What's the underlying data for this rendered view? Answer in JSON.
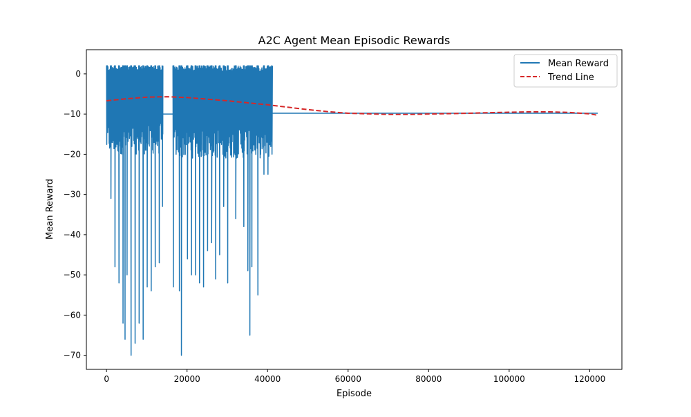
{
  "chart_data": {
    "type": "line",
    "title": "A2C Agent Mean Episodic Rewards",
    "xlabel": "Episode",
    "ylabel": "Mean Reward",
    "xlim": [
      -5000,
      128000
    ],
    "ylim": [
      -73.5,
      6
    ],
    "xticks": [
      0,
      20000,
      40000,
      60000,
      80000,
      100000,
      120000
    ],
    "yticks": [
      0,
      -10,
      -20,
      -30,
      -40,
      -50,
      -60,
      -70
    ],
    "grid": false,
    "legend": "top-right",
    "colors": {
      "mean_reward": "#1f77b4",
      "trend": "#d62728"
    },
    "series": [
      {
        "name": "Mean Reward",
        "style": "solid",
        "segments": [
          {
            "x_range": [
              0,
              14000
            ],
            "band": [
              -20,
              2
            ],
            "description_points": [
              [
                0,
                0
              ],
              [
                1000,
                -31
              ],
              [
                2000,
                -48
              ],
              [
                3000,
                -52
              ],
              [
                4000,
                -62
              ],
              [
                4500,
                -66
              ],
              [
                5000,
                -50
              ],
              [
                6000,
                -70
              ],
              [
                7000,
                -67
              ],
              [
                8000,
                -62
              ],
              [
                9000,
                -66
              ],
              [
                10000,
                -53
              ],
              [
                11000,
                -54
              ],
              [
                12000,
                -48
              ],
              [
                13000,
                -47
              ],
              [
                13800,
                -33
              ]
            ]
          },
          {
            "x_range": [
              14000,
              16500
            ],
            "band": [
              -10,
              -10
            ]
          },
          {
            "x_range": [
              16500,
              41000
            ],
            "band": [
              -21,
              2
            ],
            "description_points": [
              [
                16500,
                -53
              ],
              [
                18000,
                -54
              ],
              [
                18500,
                -70
              ],
              [
                20000,
                -46
              ],
              [
                21000,
                -50
              ],
              [
                22000,
                -50
              ],
              [
                23000,
                -52
              ],
              [
                24000,
                -53
              ],
              [
                25000,
                -44
              ],
              [
                26000,
                -42
              ],
              [
                27000,
                -51
              ],
              [
                28000,
                -45
              ],
              [
                29000,
                -33
              ],
              [
                30000,
                -52
              ],
              [
                32000,
                -36
              ],
              [
                34000,
                -38
              ],
              [
                35000,
                -49
              ],
              [
                35500,
                -65
              ],
              [
                36000,
                -48
              ],
              [
                37500,
                -55
              ],
              [
                39000,
                -25
              ],
              [
                40000,
                -25
              ],
              [
                41000,
                -20
              ]
            ]
          },
          {
            "x_range": [
              41000,
              122000
            ],
            "band": [
              -9.8,
              -9.8
            ]
          }
        ]
      },
      {
        "name": "Trend Line",
        "style": "dashed",
        "x": [
          0,
          5000,
          10000,
          15000,
          20000,
          25000,
          30000,
          35000,
          40000,
          45000,
          50000,
          55000,
          60000,
          65000,
          70000,
          75000,
          80000,
          85000,
          90000,
          95000,
          100000,
          105000,
          110000,
          115000,
          120000,
          122000
        ],
        "y": [
          -6.7,
          -6.2,
          -5.8,
          -5.7,
          -5.9,
          -6.3,
          -6.7,
          -7.2,
          -7.7,
          -8.3,
          -8.9,
          -9.4,
          -9.8,
          -9.95,
          -10.1,
          -10.1,
          -10.0,
          -9.9,
          -9.8,
          -9.65,
          -9.55,
          -9.45,
          -9.45,
          -9.6,
          -9.95,
          -10.3
        ]
      }
    ]
  }
}
